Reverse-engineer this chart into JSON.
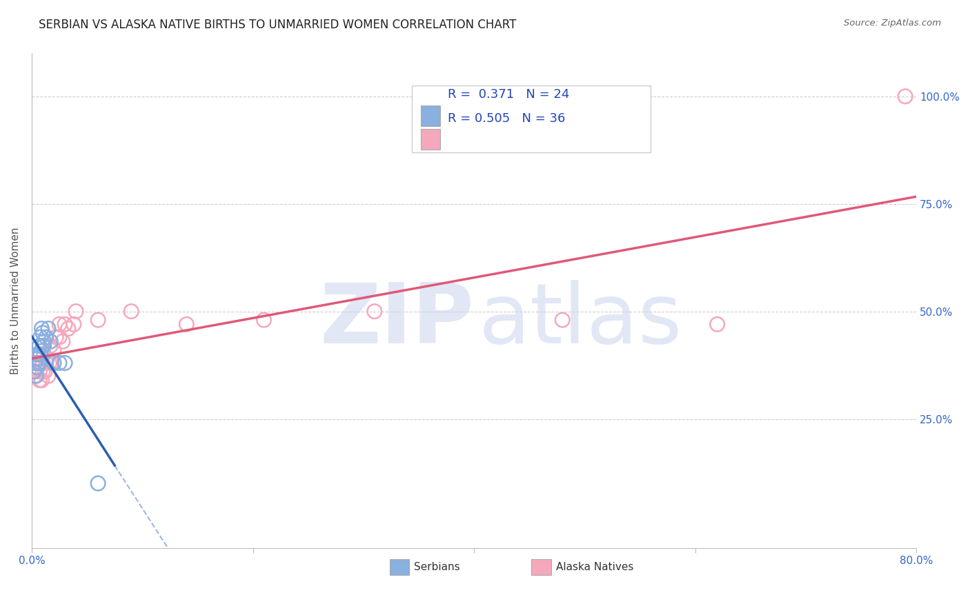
{
  "title": "SERBIAN VS ALASKA NATIVE BIRTHS TO UNMARRIED WOMEN CORRELATION CHART",
  "source": "Source: ZipAtlas.com",
  "ylabel": "Births to Unmarried Women",
  "xlim": [
    0.0,
    0.8
  ],
  "ylim": [
    -0.05,
    1.1
  ],
  "xticks": [
    0.0,
    0.2,
    0.4,
    0.6,
    0.8
  ],
  "xtick_labels": [
    "0.0%",
    "",
    "",
    "",
    "80.0%"
  ],
  "ytick_positions": [
    0.25,
    0.5,
    0.75,
    1.0
  ],
  "ytick_labels": [
    "25.0%",
    "50.0%",
    "75.0%",
    "100.0%"
  ],
  "serbian_x": [
    0.002,
    0.003,
    0.004,
    0.004,
    0.005,
    0.005,
    0.006,
    0.006,
    0.007,
    0.007,
    0.008,
    0.008,
    0.009,
    0.01,
    0.01,
    0.011,
    0.011,
    0.013,
    0.015,
    0.017,
    0.02,
    0.025,
    0.03,
    0.06
  ],
  "serbian_y": [
    0.36,
    0.38,
    0.35,
    0.39,
    0.37,
    0.4,
    0.38,
    0.4,
    0.42,
    0.38,
    0.44,
    0.4,
    0.46,
    0.42,
    0.45,
    0.43,
    0.42,
    0.44,
    0.46,
    0.43,
    0.38,
    0.38,
    0.38,
    0.1
  ],
  "alaska_x": [
    0.001,
    0.003,
    0.004,
    0.005,
    0.006,
    0.007,
    0.007,
    0.008,
    0.009,
    0.01,
    0.01,
    0.011,
    0.012,
    0.013,
    0.014,
    0.015,
    0.016,
    0.017,
    0.018,
    0.02,
    0.022,
    0.025,
    0.025,
    0.028,
    0.03,
    0.033,
    0.038,
    0.04,
    0.06,
    0.09,
    0.14,
    0.21,
    0.31,
    0.48,
    0.62,
    0.79
  ],
  "alaska_y": [
    0.36,
    0.35,
    0.37,
    0.37,
    0.39,
    0.34,
    0.36,
    0.38,
    0.34,
    0.36,
    0.38,
    0.4,
    0.36,
    0.38,
    0.39,
    0.35,
    0.38,
    0.42,
    0.38,
    0.41,
    0.44,
    0.44,
    0.47,
    0.43,
    0.47,
    0.46,
    0.47,
    0.5,
    0.48,
    0.5,
    0.47,
    0.48,
    0.5,
    0.48,
    0.47,
    1.0
  ],
  "serbian_color": "#8ab0e0",
  "alaska_color": "#f5a8bc",
  "serbian_line_color": "#2a5db0",
  "alaska_line_color": "#e05878",
  "serbian_dash_color": "#9ab8e8",
  "R_serbian": 0.371,
  "N_serbian": 24,
  "R_alaska": 0.505,
  "N_alaska": 36,
  "legend_label_serbian": "Serbians",
  "legend_label_alaska": "Alaska Natives",
  "watermark_zip": "ZIP",
  "watermark_atlas": "atlas",
  "grid_color": "#cccccc",
  "background_color": "#ffffff",
  "title_fontsize": 12,
  "axis_label_fontsize": 11,
  "tick_fontsize": 11,
  "legend_fontsize": 13
}
